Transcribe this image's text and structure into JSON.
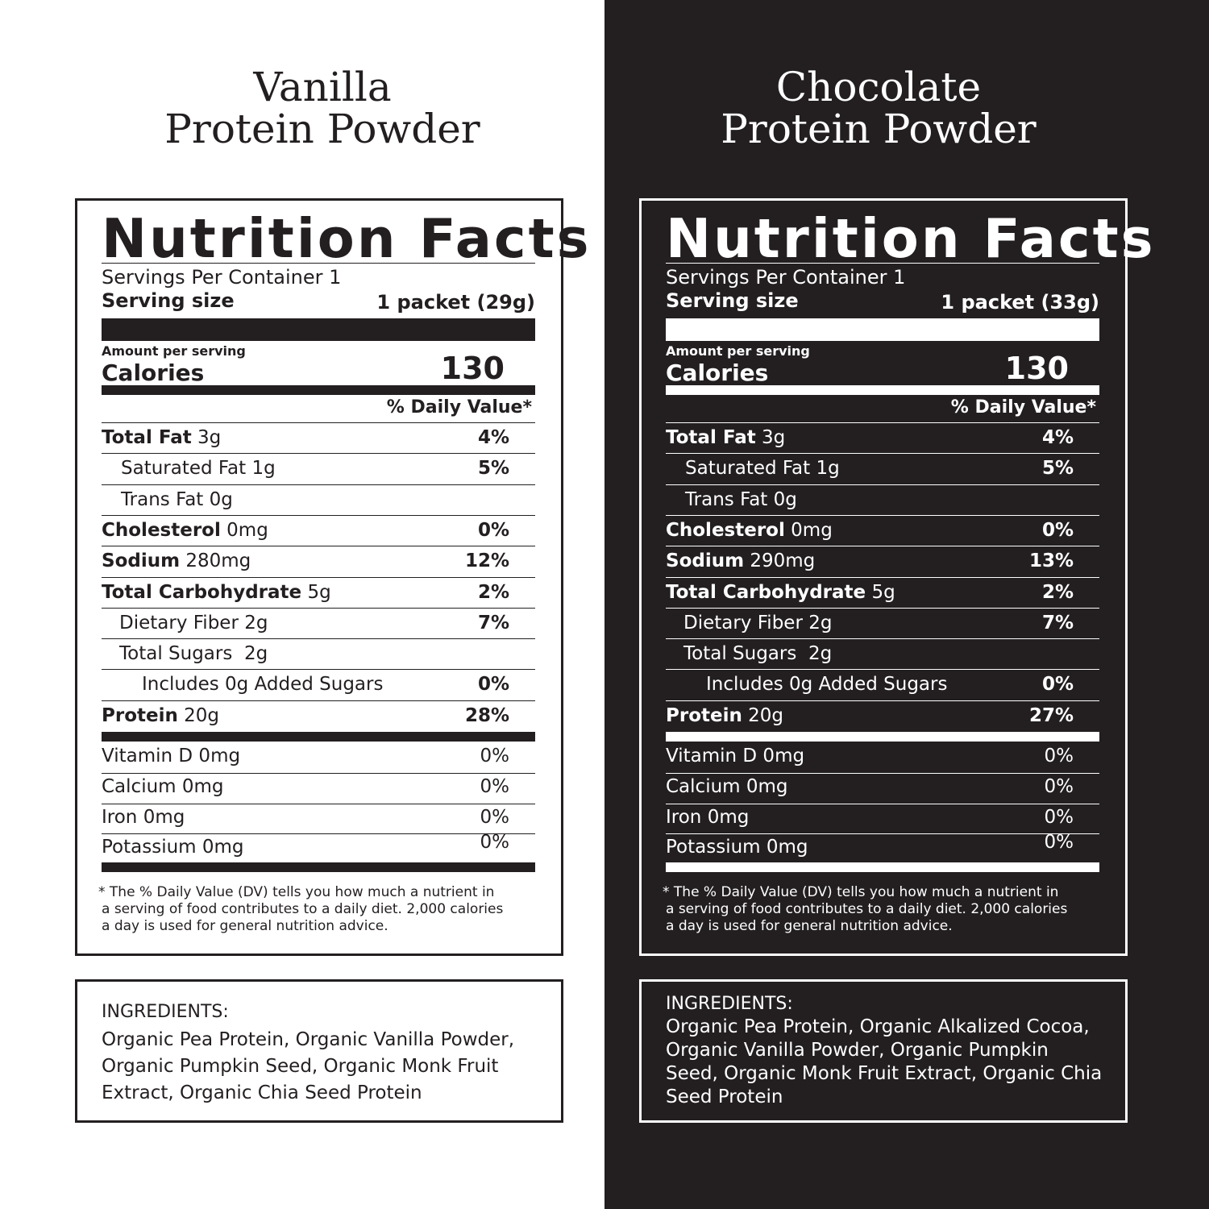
{
  "vanilla": {
    "title_line1": "Vanilla",
    "title_line2": "Protein Powder",
    "nf_title": "Nutrition Facts",
    "servings_per_container": "Servings Per Container 1",
    "serving_size_label": "Serving size",
    "serving_size_value": "1 packet (29g)",
    "amount_per_serving": "Amount per serving",
    "calories_label": "Calories",
    "calories_value": "130",
    "dv_header": "% Daily Value*",
    "rows": [
      {
        "bold": "Total Fat",
        "rest": " 3g",
        "pct": "4%"
      },
      {
        "bold": "",
        "rest": "Saturated Fat 1g",
        "pct": "5%"
      },
      {
        "bold": "",
        "rest": "Trans Fat 0g",
        "pct": ""
      },
      {
        "bold": "Cholesterol",
        "rest": " 0mg",
        "pct": "0%"
      },
      {
        "bold": "Sodium",
        "rest": " 280mg",
        "pct": "12%"
      },
      {
        "bold": "Total Carbohydrate",
        "rest": " 5g",
        "pct": "2%"
      },
      {
        "bold": "",
        "rest": "Dietary Fiber 2g",
        "pct": "7%"
      },
      {
        "bold": "",
        "rest": "Total Sugars  2g",
        "pct": ""
      },
      {
        "bold": "",
        "rest": "Includes 0g Added Sugars",
        "pct": "0%"
      },
      {
        "bold": "Protein",
        "rest": " 20g",
        "pct": "28%"
      }
    ],
    "vitamins": [
      {
        "label": "Vitamin D 0mg",
        "pct": "0%"
      },
      {
        "label": "Calcium 0mg",
        "pct": "0%"
      },
      {
        "label": "Iron 0mg",
        "pct": "0%"
      },
      {
        "label": "Potassium 0mg",
        "pct": "0%"
      }
    ],
    "footnote": [
      "* The % Daily Value (DV) tells you how much a nutrient in",
      "a serving of food contributes to a daily diet. 2,000 calories",
      "a day is used for general nutrition advice."
    ],
    "ingredients_head": "INGREDIENTS:",
    "ingredients_lines": [
      "Organic Pea Protein, Organic Vanilla Powder,",
      "Organic Pumpkin Seed, Organic Monk Fruit",
      "Extract, Organic Chia Seed Protein"
    ]
  },
  "chocolate": {
    "title_line1": "Chocolate",
    "title_line2": "Protein Powder",
    "nf_title": "Nutrition Facts",
    "servings_per_container": "Servings Per Container 1",
    "serving_size_label": "Serving size",
    "serving_size_value": "1 packet (33g)",
    "amount_per_serving": "Amount per serving",
    "calories_label": "Calories",
    "calories_value": "130",
    "dv_header": "% Daily Value*",
    "rows": [
      {
        "bold": "Total Fat",
        "rest": " 3g",
        "pct": "4%"
      },
      {
        "bold": "",
        "rest": "Saturated Fat 1g",
        "pct": "5%"
      },
      {
        "bold": "",
        "rest": "Trans Fat 0g",
        "pct": ""
      },
      {
        "bold": "Cholesterol",
        "rest": " 0mg",
        "pct": "0%"
      },
      {
        "bold": "Sodium",
        "rest": " 290mg",
        "pct": "13%"
      },
      {
        "bold": "Total Carbohydrate",
        "rest": " 5g",
        "pct": "2%"
      },
      {
        "bold": "",
        "rest": "Dietary Fiber 2g",
        "pct": "7%"
      },
      {
        "bold": "",
        "rest": "Total Sugars  2g",
        "pct": ""
      },
      {
        "bold": "",
        "rest": "Includes 0g Added Sugars",
        "pct": "0%"
      },
      {
        "bold": "Protein",
        "rest": " 20g",
        "pct": "27%"
      }
    ],
    "vitamins": [
      {
        "label": "Vitamin D 0mg",
        "pct": "0%"
      },
      {
        "label": "Calcium 0mg",
        "pct": "0%"
      },
      {
        "label": "Iron 0mg",
        "pct": "0%"
      },
      {
        "label": "Potassium 0mg",
        "pct": "0%"
      }
    ],
    "footnote": [
      "* The % Daily Value (DV) tells you how much a nutrient in",
      "a serving of food contributes to a daily diet. 2,000 calories",
      "a day is used for general nutrition advice."
    ],
    "ingredients_head": "INGREDIENTS:",
    "ingredients_lines": [
      "Organic Pea Protein, Organic Alkalized Cocoa,",
      "Organic Vanilla Powder, Organic Pumpkin",
      "Seed, Organic Monk Fruit Extract, Organic Chia",
      "Seed Protein"
    ]
  },
  "colors": {
    "dark": "#231f20",
    "light": "#ffffff"
  }
}
